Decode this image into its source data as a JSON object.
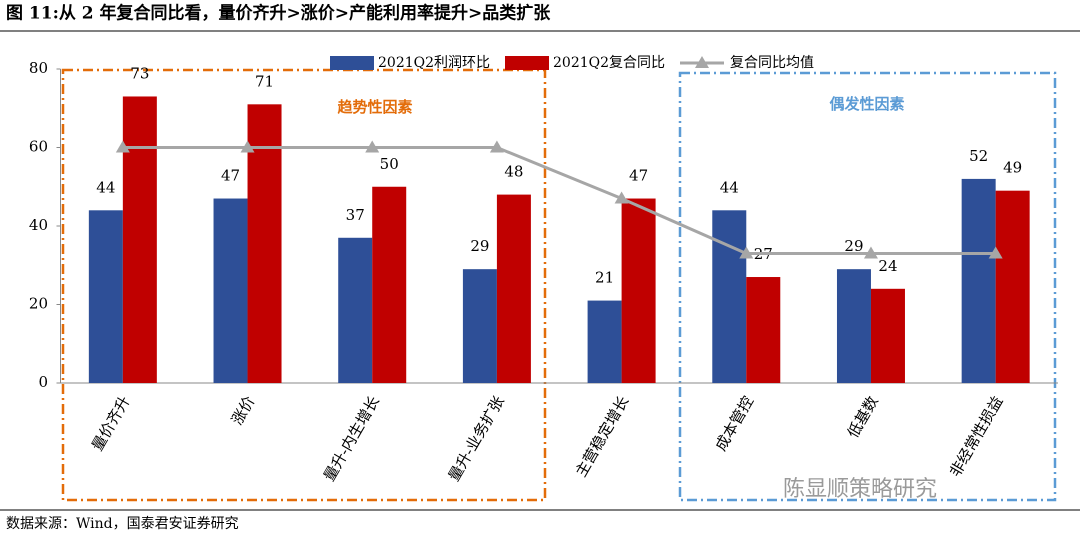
{
  "chart_data": {
    "type": "bar",
    "title": "图 11:从 2 年复合同比看，量价齐升>涨价>产能利用率提升>品类扩张",
    "categories": [
      "量价齐升",
      "涨价",
      "量升-内生增长",
      "量升-业务扩张",
      "主营稳定增长",
      "成本管控",
      "低基数",
      "非经常性损益"
    ],
    "series": [
      {
        "name": "2021Q2利润环比",
        "color": "#2e4f97",
        "values": [
          44,
          47,
          37,
          29,
          21,
          44,
          29,
          52
        ]
      },
      {
        "name": "2021Q2复合同比",
        "color": "#c00000",
        "values": [
          73,
          71,
          50,
          48,
          47,
          27,
          24,
          49
        ]
      },
      {
        "name": "复合同比均值",
        "color": "#a6a6a6",
        "type": "line",
        "values": [
          60,
          60,
          60,
          60,
          47,
          33,
          33,
          33
        ]
      }
    ],
    "ylim": [
      0,
      80
    ],
    "yticks": [
      0,
      20,
      40,
      60,
      80
    ],
    "grid": false,
    "annotations": [
      "趋势性因素",
      "偶发性因素"
    ],
    "source": "数据来源：Wind，国泰君安证券研究",
    "watermark": "陈显顺策略研究"
  }
}
